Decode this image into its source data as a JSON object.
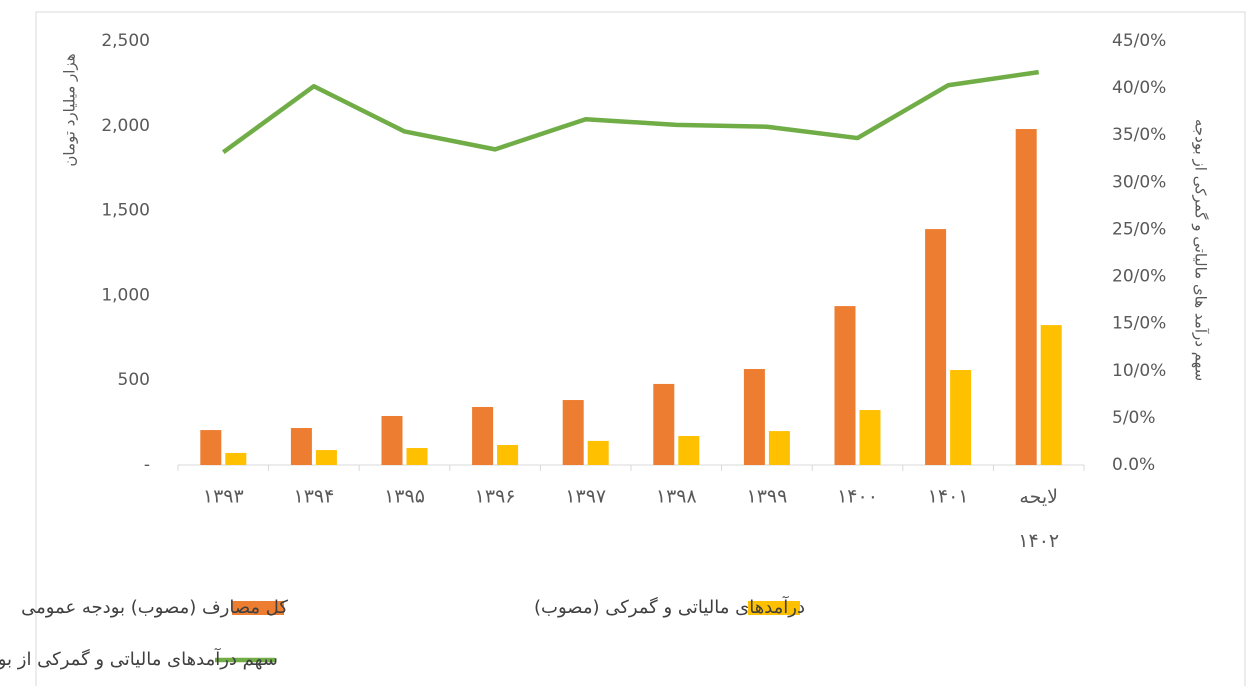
{
  "chart_data": {
    "type": "bar",
    "categories": [
      "۱۳۹۳",
      "۱۳۹۴",
      "۱۳۹۵",
      "۱۳۹۶",
      "۱۳۹۷",
      "۱۳۹۸",
      "۱۳۹۹",
      "۱۴۰۰",
      "۱۴۰۱",
      "لایحه ۱۴۰۲"
    ],
    "series": [
      {
        "name": "کل مصارف (مصوب) بودجه عمومی",
        "color": "#ed7d31",
        "type": "bar",
        "values": [
          206,
          218,
          289,
          342,
          383,
          478,
          566,
          937,
          1391,
          1981
        ]
      },
      {
        "name": "درآمدهای مالیاتی و گمرکی (مصوب)",
        "color": "#ffc000",
        "type": "bar",
        "values": [
          71,
          88,
          100,
          118,
          142,
          171,
          200,
          324,
          560,
          825
        ]
      },
      {
        "name": "سهم درآمدهای مالیاتی و گمرکی از بودجه",
        "color": "#70ad47",
        "type": "line",
        "axis": "y2",
        "values": [
          33.2,
          40.2,
          35.4,
          33.5,
          36.7,
          36.1,
          35.9,
          34.7,
          40.3,
          41.7
        ]
      }
    ],
    "ylabel": "هزار میلیارد تومان",
    "y2label": "سهم درآمد های مالیاتی و گمرکی از بودجه",
    "ylim": [
      0,
      2500
    ],
    "yticks": [
      {
        "value": 0,
        "label": "-"
      },
      500,
      {
        "value": 1000,
        "label": "1,000"
      },
      {
        "value": 1500,
        "label": "1,500"
      },
      {
        "value": 2000,
        "label": "2,000"
      },
      {
        "value": 2500,
        "label": "2,500"
      }
    ],
    "y2lim": [
      0,
      45
    ],
    "y2ticks": [
      {
        "value": 0,
        "label": "0.0%"
      },
      {
        "value": 5,
        "label": "5/0%"
      },
      {
        "value": 10,
        "label": "10/0%"
      },
      {
        "value": 15,
        "label": "15/0%"
      },
      {
        "value": 20,
        "label": "20/0%"
      },
      {
        "value": 25,
        "label": "25/0%"
      },
      {
        "value": 30,
        "label": "30/0%"
      },
      {
        "value": 35,
        "label": "35/0%"
      },
      {
        "value": 40,
        "label": "40/0%"
      },
      {
        "value": 45,
        "label": "45/0%"
      }
    ],
    "grid": false
  }
}
